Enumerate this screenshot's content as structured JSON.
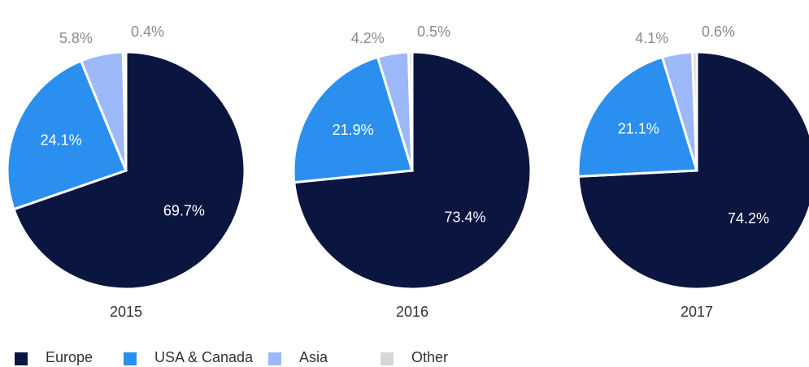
{
  "chart_data": [
    {
      "type": "pie",
      "title": "2015",
      "categories": [
        "Europe",
        "USA & Canada",
        "Asia",
        "Other"
      ],
      "values": [
        69.7,
        24.1,
        5.8,
        0.4
      ],
      "value_labels": [
        "69.7%",
        "24.1%",
        "5.8%",
        "0.4%"
      ],
      "colors": [
        "#0a1640",
        "#2b8ff0",
        "#9db8f8",
        "#d6d6d6"
      ]
    },
    {
      "type": "pie",
      "title": "2016",
      "categories": [
        "Europe",
        "USA & Canada",
        "Asia",
        "Other"
      ],
      "values": [
        73.4,
        21.9,
        4.2,
        0.5
      ],
      "value_labels": [
        "73.4%",
        "21.9%",
        "4.2%",
        "0.5%"
      ],
      "colors": [
        "#0a1640",
        "#2b8ff0",
        "#9db8f8",
        "#d6d6d6"
      ]
    },
    {
      "type": "pie",
      "title": "2017",
      "categories": [
        "Europe",
        "USA & Canada",
        "Asia",
        "Other"
      ],
      "values": [
        74.2,
        21.1,
        4.1,
        0.6
      ],
      "value_labels": [
        "74.2%",
        "21.1%",
        "4.1%",
        "0.6%"
      ],
      "colors": [
        "#0a1640",
        "#2b8ff0",
        "#9db8f8",
        "#d6d6d6"
      ]
    }
  ]
}
